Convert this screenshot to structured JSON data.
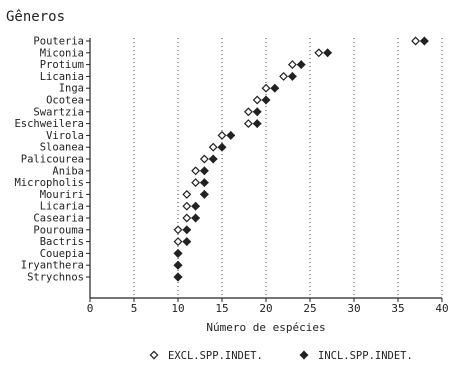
{
  "chart_data": {
    "type": "scatter",
    "title": "Gêneros",
    "xlabel": "Número de espécies",
    "ylabel": "",
    "xlim": [
      0,
      40
    ],
    "xticks": [
      0,
      5,
      10,
      15,
      20,
      25,
      30,
      35,
      40
    ],
    "xtick_labels": [
      "0",
      "5",
      "10",
      "15",
      "20",
      "25",
      "30",
      "35",
      "40"
    ],
    "grid": "vertical dotted",
    "legend_position": "bottom",
    "categories": [
      "Pouteria",
      "Miconia",
      "Protium",
      "Licania",
      "Inga",
      "Ocotea",
      "Swartzia",
      "Eschweilera",
      "Virola",
      "Sloanea",
      "Palicourea",
      "Aniba",
      "Micropholis",
      "Mouriri",
      "Licaria",
      "Casearia",
      "Pourouma",
      "Bactris",
      "Couepia",
      "Iryanthera",
      "Strychnos"
    ],
    "series": [
      {
        "name": "EXCL.SPP.INDET.",
        "marker": "diamond-open",
        "color": "#222222",
        "values": [
          37,
          26,
          23,
          22,
          20,
          19,
          18,
          18,
          15,
          14,
          13,
          12,
          12,
          11,
          11,
          11,
          10,
          10,
          10,
          10,
          10
        ]
      },
      {
        "name": "INCL.SPP.INDET.",
        "marker": "diamond-filled",
        "color": "#222222",
        "values": [
          38,
          27,
          24,
          23,
          21,
          20,
          19,
          19,
          16,
          15,
          14,
          13,
          13,
          13,
          12,
          12,
          11,
          11,
          10,
          10,
          10
        ]
      }
    ]
  }
}
